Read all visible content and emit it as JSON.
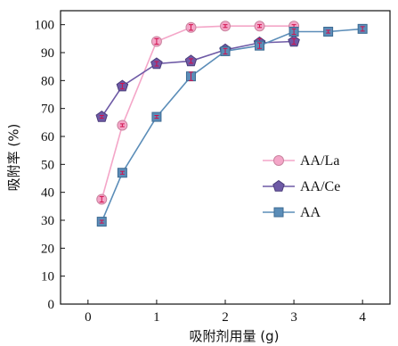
{
  "chart_data": {
    "type": "line",
    "title": "",
    "xlabel": "吸附剂用量 (g)",
    "ylabel": "吸附率 (%)",
    "xlim": [
      -0.4,
      4.4
    ],
    "ylim": [
      0,
      105
    ],
    "xticks": [
      0,
      1,
      2,
      3,
      4
    ],
    "yticks": [
      0,
      10,
      20,
      30,
      40,
      50,
      60,
      70,
      80,
      90,
      100
    ],
    "grid": false,
    "legend_position": "right-middle",
    "series": [
      {
        "name": "AA/La",
        "color": "#f4a6c8",
        "marker": "circle",
        "x": [
          0.2,
          0.5,
          1.0,
          1.5,
          2.0,
          2.5,
          3.0
        ],
        "y": [
          37.5,
          64,
          94,
          99,
          99.5,
          99.5,
          99.5
        ],
        "err": [
          1,
          0.5,
          1,
          1,
          0.5,
          0.5,
          0.5
        ]
      },
      {
        "name": "AA/Ce",
        "color": "#6e5aa6",
        "marker": "pentagon",
        "x": [
          0.2,
          0.5,
          1.0,
          1.5,
          2.0,
          2.5,
          3.0
        ],
        "y": [
          67,
          78,
          86,
          87,
          91,
          93.5,
          94
        ],
        "err": [
          0.5,
          1,
          0.8,
          0.8,
          1,
          1.5,
          1
        ]
      },
      {
        "name": "AA",
        "color": "#5b8db8",
        "marker": "square",
        "x": [
          0.2,
          0.5,
          1.0,
          1.5,
          2.0,
          2.5,
          3.0,
          3.5,
          4.0
        ],
        "y": [
          29.5,
          47,
          67,
          81.5,
          90.5,
          92.5,
          97.5,
          97.5,
          98.5
        ],
        "err": [
          0.5,
          0.5,
          0.5,
          1.5,
          1,
          1,
          1,
          0.5,
          0.8
        ]
      }
    ]
  }
}
